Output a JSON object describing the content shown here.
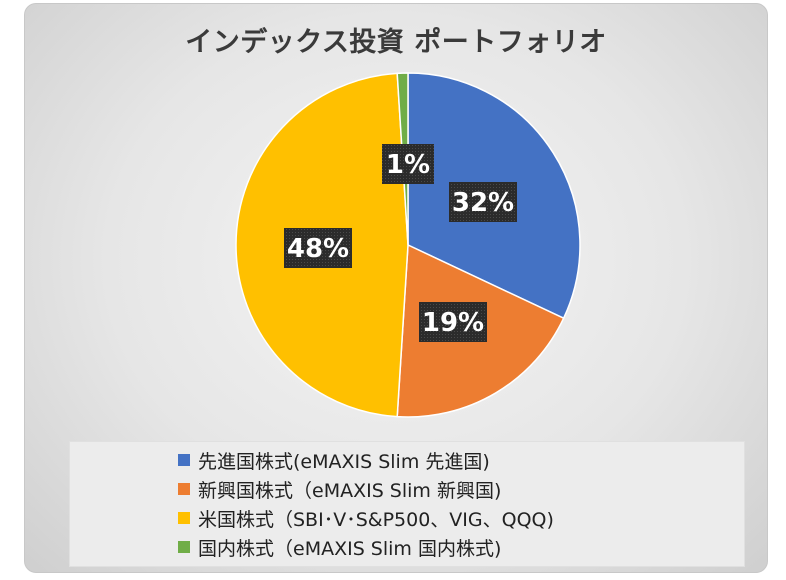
{
  "chart_data": {
    "type": "pie",
    "title": "インデックス投資 ポートフォリオ",
    "series": [
      {
        "name": "先進国株式(eMAXIS Slim 先進国)",
        "value": 32,
        "label": "32%",
        "color": "#4472C4"
      },
      {
        "name": "新興国株式（eMAXIS Slim 新興国)",
        "value": 19,
        "label": "19%",
        "color": "#ED7D31"
      },
      {
        "name": "米国株式（SBI･V･S&P500、VIG、QQQ)",
        "value": 48,
        "label": "48%",
        "color": "#FFC000"
      },
      {
        "name": "国内株式（eMAXIS Slim 国内株式)",
        "value": 1,
        "label": "1%",
        "color": "#70AD47"
      }
    ],
    "legend_position": "bottom",
    "data_label_style": "dark box, white bold text"
  }
}
